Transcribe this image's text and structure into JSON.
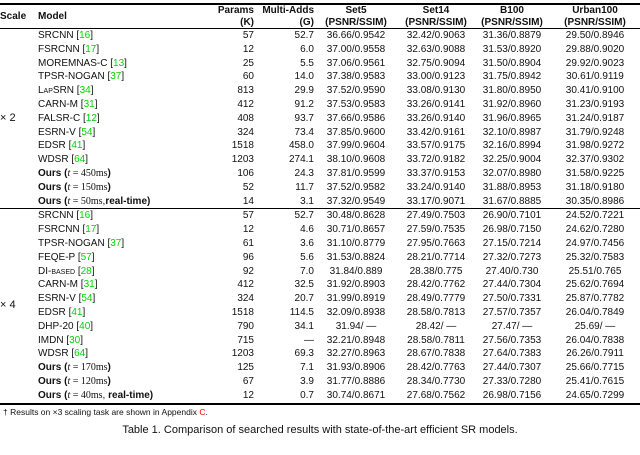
{
  "colors": {
    "citation_green": "#00d400",
    "appendix_link_red": "#e80000",
    "rule_black": "#000000"
  },
  "table": {
    "columns": [
      {
        "key": "scale",
        "label": "Scale",
        "label2": ""
      },
      {
        "key": "model",
        "label": "Model",
        "label2": ""
      },
      {
        "key": "params",
        "label": "Params",
        "label2": "(K)"
      },
      {
        "key": "multiadds",
        "label": "Multi-Adds",
        "label2": "(G)"
      },
      {
        "key": "set5",
        "label": "Set5",
        "label2": "(PSNR/SSIM)"
      },
      {
        "key": "set14",
        "label": "Set14",
        "label2": "(PSNR/SSIM)"
      },
      {
        "key": "b100",
        "label": "B100",
        "label2": "(PSNR/SSIM)"
      },
      {
        "key": "urban100",
        "label": "Urban100",
        "label2": "(PSNR/SSIM)"
      }
    ],
    "sections": [
      {
        "scale_label": "× 2",
        "rows": [
          {
            "model": "SRCNN",
            "ref": "16",
            "params": "57",
            "multiadds": "52.7",
            "set5": "36.66/0.9542",
            "set14": "32.42/0.9063",
            "b100": "31.36/0.8879",
            "urban100": "29.50/0.8946"
          },
          {
            "model": "FSRCNN",
            "ref": "17",
            "params": "12",
            "multiadds": "6.0",
            "set5": "37.00/0.9558",
            "set14": "32.63/0.9088",
            "b100": "31.53/0.8920",
            "urban100": "29.88/0.9020"
          },
          {
            "model": "MOREMNAS-C",
            "ref": "13",
            "params": "25",
            "multiadds": "5.5",
            "set5": "37.06/0.9561",
            "set14": "32.75/0.9094",
            "b100": "31.50/0.8904",
            "urban100": "29.92/0.9023"
          },
          {
            "model": "TPSR-NOGAN",
            "ref": "37",
            "params": "60",
            "multiadds": "14.0",
            "set5": "37.38/0.9583",
            "set14": "33.00/0.9123",
            "b100": "31.75/0.8942",
            "urban100": "30.61/0.9119"
          },
          {
            "model": "LapSRN",
            "smallcaps": true,
            "ref": "34",
            "params": "813",
            "multiadds": "29.9",
            "set5": "37.52/0.9590",
            "set14": "33.08/0.9130",
            "b100": "31.80/0.8950",
            "urban100": "30.41/0.9100"
          },
          {
            "model": "CARN-M",
            "ref": "31",
            "params": "412",
            "multiadds": "91.2",
            "set5": "37.53/0.9583",
            "set14": "33.26/0.9141",
            "b100": "31.92/0.8960",
            "urban100": "31.23/0.9193"
          },
          {
            "model": "FALSR-C",
            "ref": "12",
            "params": "408",
            "multiadds": "93.7",
            "set5": "37.66/0.9586",
            "set14": "33.26/0.9140",
            "b100": "31.96/0.8965",
            "urban100": "31.24/0.9187"
          },
          {
            "model": "ESRN-V",
            "ref": "54",
            "params": "324",
            "multiadds": "73.4",
            "set5": "37.85/0.9600",
            "set14": "33.42/0.9161",
            "b100": "32.10/0.8987",
            "urban100": "31.79/0.9248"
          },
          {
            "model": "EDSR",
            "ref": "41",
            "params": "1518",
            "multiadds": "458.0",
            "set5": "37.99/0.9604",
            "set14": "33.57/0.9175",
            "b100": "32.16/0.8994",
            "urban100": "31.98/0.9272"
          },
          {
            "model": "WDSR",
            "ref": "64",
            "params": "1203",
            "multiadds": "274.1",
            "set5": "38.10/0.9608",
            "set14": "33.72/0.9182",
            "b100": "32.25/0.9004",
            "urban100": "32.37/0.9302"
          },
          {
            "ours": {
              "pre": "Ours (",
              "var": "t",
              "eq": " = ",
              "time": "450ms",
              "sep": "",
              "tail": "",
              "close": ")"
            },
            "params": "106",
            "multiadds": "24.3",
            "set5": "37.81/0.9599",
            "set14": "33.37/0.9153",
            "b100": "32.07/0.8980",
            "urban100": "31.58/0.9225"
          },
          {
            "ours": {
              "pre": "Ours (",
              "var": "t",
              "eq": " = ",
              "time": "150ms",
              "sep": "",
              "tail": "",
              "close": ")"
            },
            "params": "52",
            "multiadds": "11.7",
            "set5": "37.52/0.9582",
            "set14": "33.24/0.9140",
            "b100": "31.88/0.8953",
            "urban100": "31.18/0.9180"
          },
          {
            "ours": {
              "pre": "Ours (",
              "var": "t",
              "eq": " = ",
              "time": "50ms",
              "sep": ",",
              "tail": "real-time",
              "close": ")"
            },
            "params": "14",
            "multiadds": "3.1",
            "set5": "37.32/0.9549",
            "set14": "33.17/0.9071",
            "b100": "31.67/0.8885",
            "urban100": "30.35/0.8986"
          }
        ]
      },
      {
        "scale_label": "× 4",
        "rows": [
          {
            "model": "SRCNN",
            "ref": "16",
            "params": "57",
            "multiadds": "52.7",
            "set5": "30.48/0.8628",
            "set14": "27.49/0.7503",
            "b100": "26.90/0.7101",
            "urban100": "24.52/0.7221"
          },
          {
            "model": "FSRCNN",
            "ref": "17",
            "params": "12",
            "multiadds": "4.6",
            "set5": "30.71/0.8657",
            "set14": "27.59/0.7535",
            "b100": "26.98/0.7150",
            "urban100": "24.62/0.7280"
          },
          {
            "model": "TPSR-NOGAN",
            "ref": "37",
            "params": "61",
            "multiadds": "3.6",
            "set5": "31.10/0.8779",
            "set14": "27.95/0.7663",
            "b100": "27.15/0.7214",
            "urban100": "24.97/0.7456"
          },
          {
            "model": "FEQE-P",
            "ref": "57",
            "params": "96",
            "multiadds": "5.6",
            "set5": "31.53/0.8824",
            "set14": "28.21/0.7714",
            "b100": "27.32/0.7273",
            "urban100": "25.32/0.7583"
          },
          {
            "model": "DI-based",
            "smallcaps": true,
            "ref": "28",
            "params": "92",
            "multiadds": "7.0",
            "set5": "31.84/0.889",
            "set14": "28.38/0.775",
            "b100": "27.40/0.730",
            "urban100": "25.51/0.765"
          },
          {
            "model": "CARN-M",
            "ref": "31",
            "params": "412",
            "multiadds": "32.5",
            "set5": "31.92/0.8903",
            "set14": "28.42/0.7762",
            "b100": "27.44/0.7304",
            "urban100": "25.62/0.7694"
          },
          {
            "model": "ESRN-V",
            "ref": "54",
            "params": "324",
            "multiadds": "20.7",
            "set5": "31.99/0.8919",
            "set14": "28.49/0.7779",
            "b100": "27.50/0.7331",
            "urban100": "25.87/0.7782"
          },
          {
            "model": "EDSR",
            "ref": "41",
            "params": "1518",
            "multiadds": "114.5",
            "set5": "32.09/0.8938",
            "set14": "28.58/0.7813",
            "b100": "27.57/0.7357",
            "urban100": "26.04/0.7849"
          },
          {
            "model": "DHP-20",
            "ref": "40",
            "params": "790",
            "multiadds": "34.1",
            "set5": "31.94/ —",
            "set14": "28.42/ —",
            "b100": "27.47/ —",
            "urban100": "25.69/ —"
          },
          {
            "model": "IMDN",
            "ref": "30",
            "params": "715",
            "multiadds": "—",
            "set5": "32.21/0.8948",
            "set14": "28.58/0.7811",
            "b100": "27.56/0.7353",
            "urban100": "26.04/0.7838"
          },
          {
            "model": "WDSR",
            "ref": "64",
            "params": "1203",
            "multiadds": "69.3",
            "set5": "32.27/0.8963",
            "set14": "28.67/0.7838",
            "b100": "27.64/0.7383",
            "urban100": "26.26/0.7911"
          },
          {
            "ours": {
              "pre": "Ours (",
              "var": "t",
              "eq": " = ",
              "time": "170ms",
              "sep": "",
              "tail": "",
              "close": ")"
            },
            "params": "125",
            "multiadds": "7.1",
            "set5": "31.93/0.8906",
            "set14": "28.42/0.7763",
            "b100": "27.44/0.7307",
            "urban100": "25.66/0.7715"
          },
          {
            "ours": {
              "pre": "Ours (",
              "var": "t",
              "eq": " = ",
              "time": "120ms",
              "sep": "",
              "tail": "",
              "close": ")"
            },
            "params": "67",
            "multiadds": "3.9",
            "set5": "31.77/0.8886",
            "set14": "28.34/0.7730",
            "b100": "27.33/0.7280",
            "urban100": "25.41/0.7615"
          },
          {
            "ours": {
              "pre": "Ours (",
              "var": "t",
              "eq": " = ",
              "time": "40ms",
              "sep": ", ",
              "tail": "real-time",
              "close": ")"
            },
            "params": "12",
            "multiadds": "0.7",
            "set5": "30.74/0.8671",
            "set14": "27.68/0.7562",
            "b100": "26.98/0.7156",
            "urban100": "24.65/0.7299"
          }
        ]
      }
    ]
  },
  "footnote": {
    "marker": "†",
    "text_before": " Results on ×3 scaling task are shown in Appendix ",
    "link": "C",
    "text_after": "."
  },
  "caption": "Table 1. Comparison of searched results with state-of-the-art efficient SR models."
}
